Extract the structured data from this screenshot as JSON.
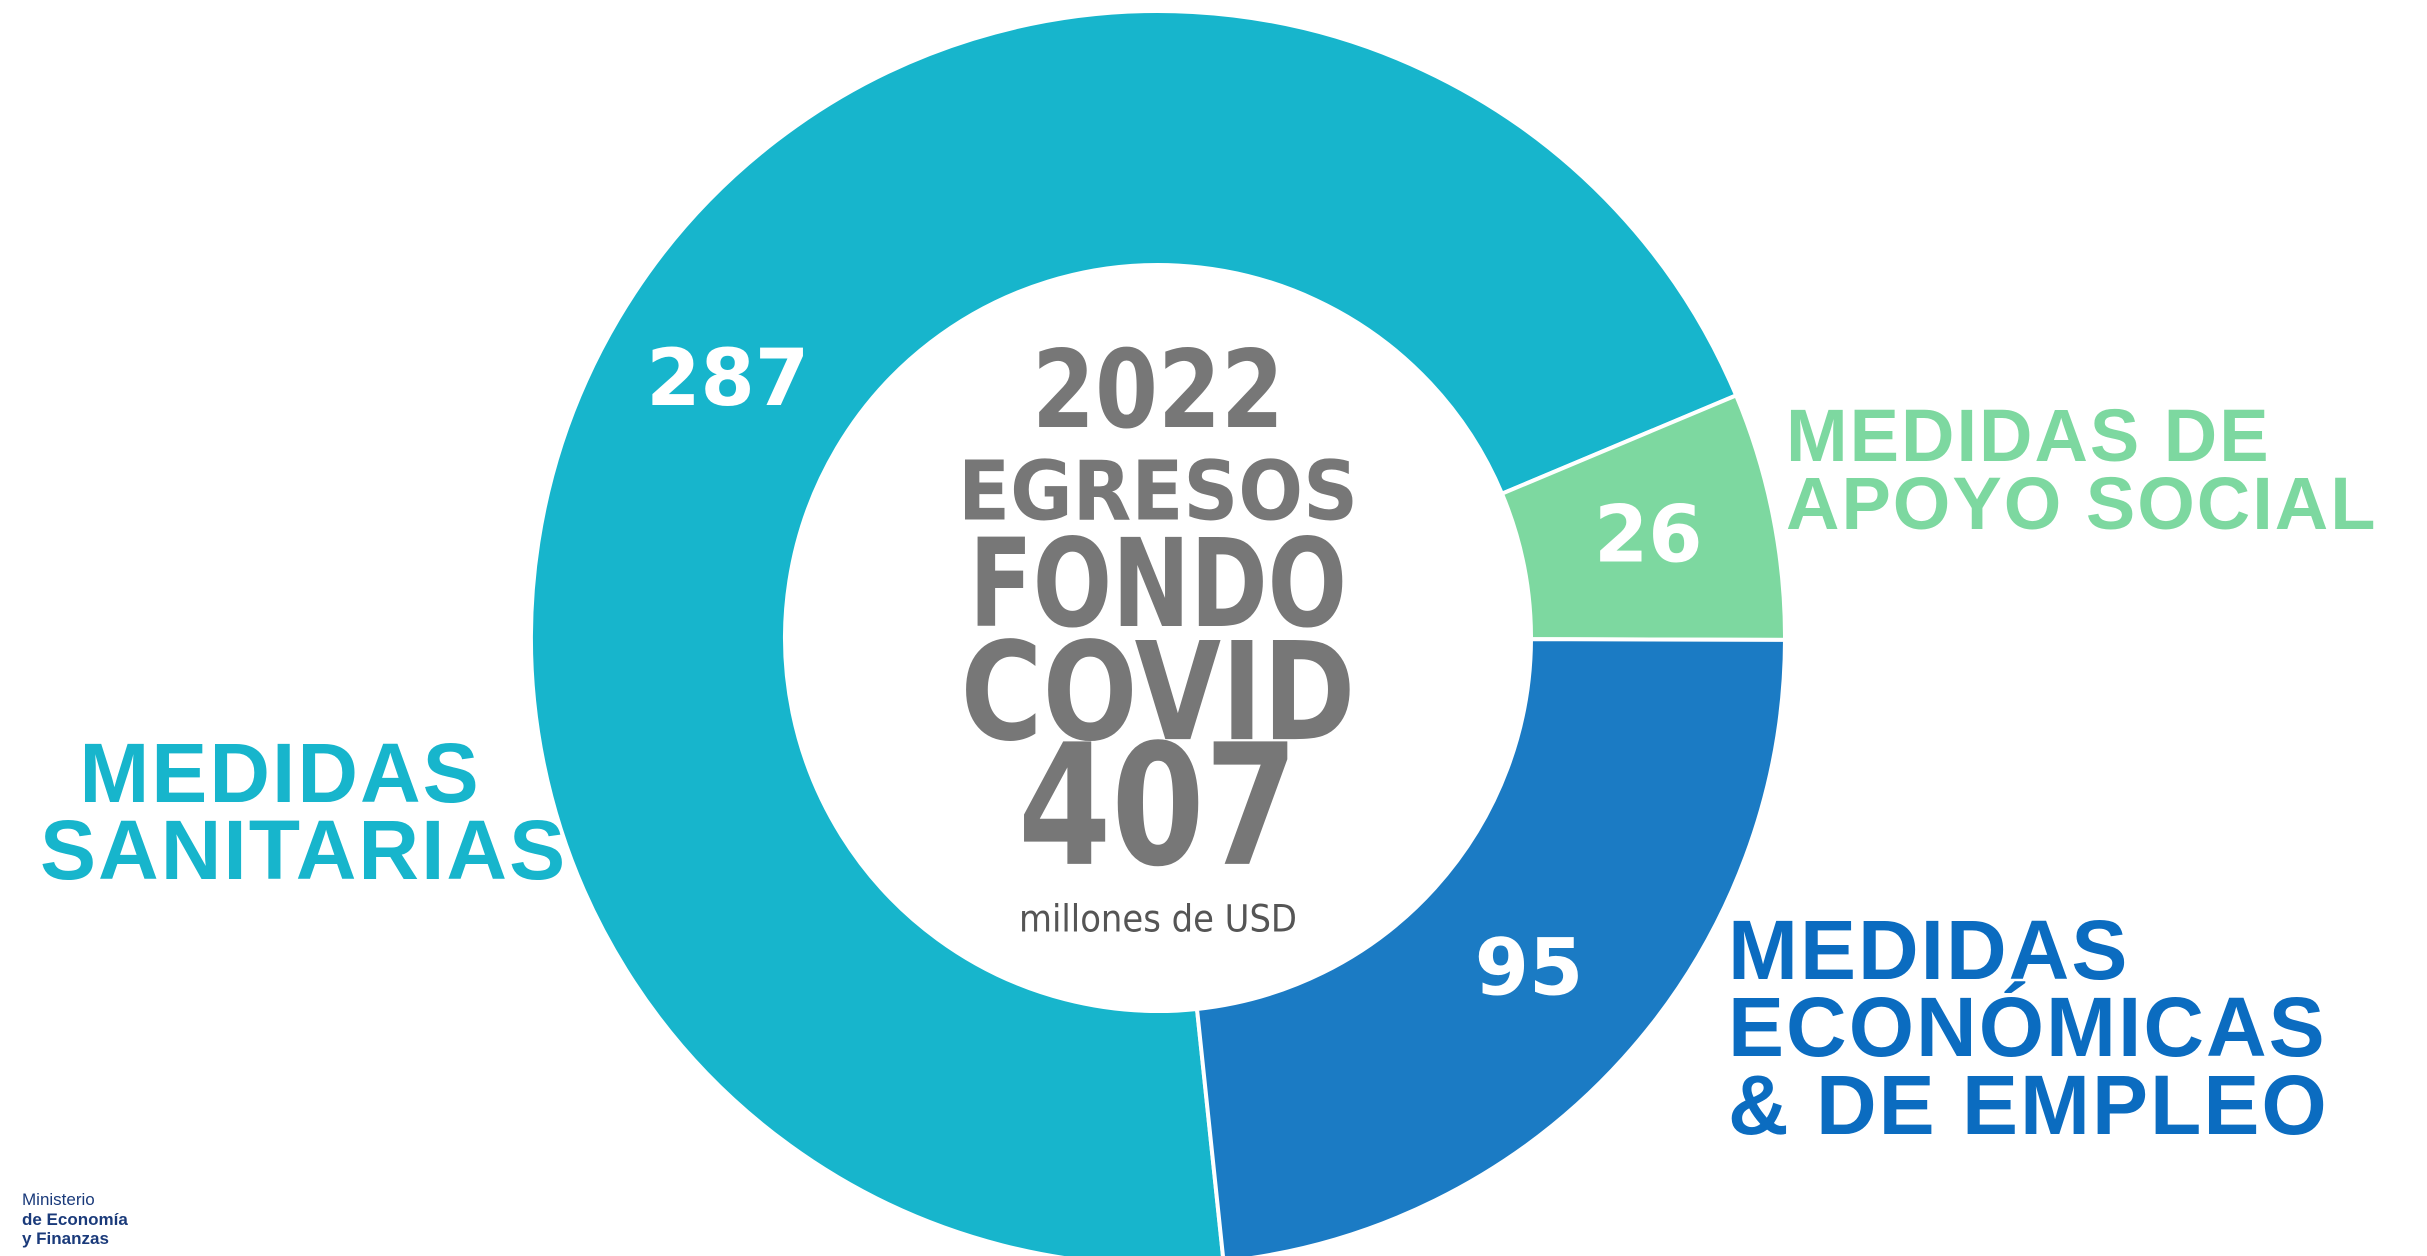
{
  "chart_data": {
    "type": "donut",
    "categories": [
      "MEDIDAS\nSANITARIAS",
      "MEDIDAS DE\nAPOYO SOCIAL",
      "MEDIDAS\nECONÓMICAS\n& DE EMPLEO"
    ],
    "values": [
      287,
      26,
      95
    ],
    "colors": [
      "#17b5cc",
      "#7dd8a0",
      "#1b7bc4"
    ],
    "label_colors": [
      "#17b5cc",
      "#7dd8a0",
      "#0b6cc0"
    ],
    "center": {
      "year": "2022",
      "line1": "EGRESOS",
      "line2": "FONDO",
      "line3": "COVID",
      "total": "407",
      "unit": "millones de USD"
    }
  },
  "logo": {
    "lines": [
      "Ministerio",
      "de Economía",
      "y Finanzas"
    ]
  }
}
